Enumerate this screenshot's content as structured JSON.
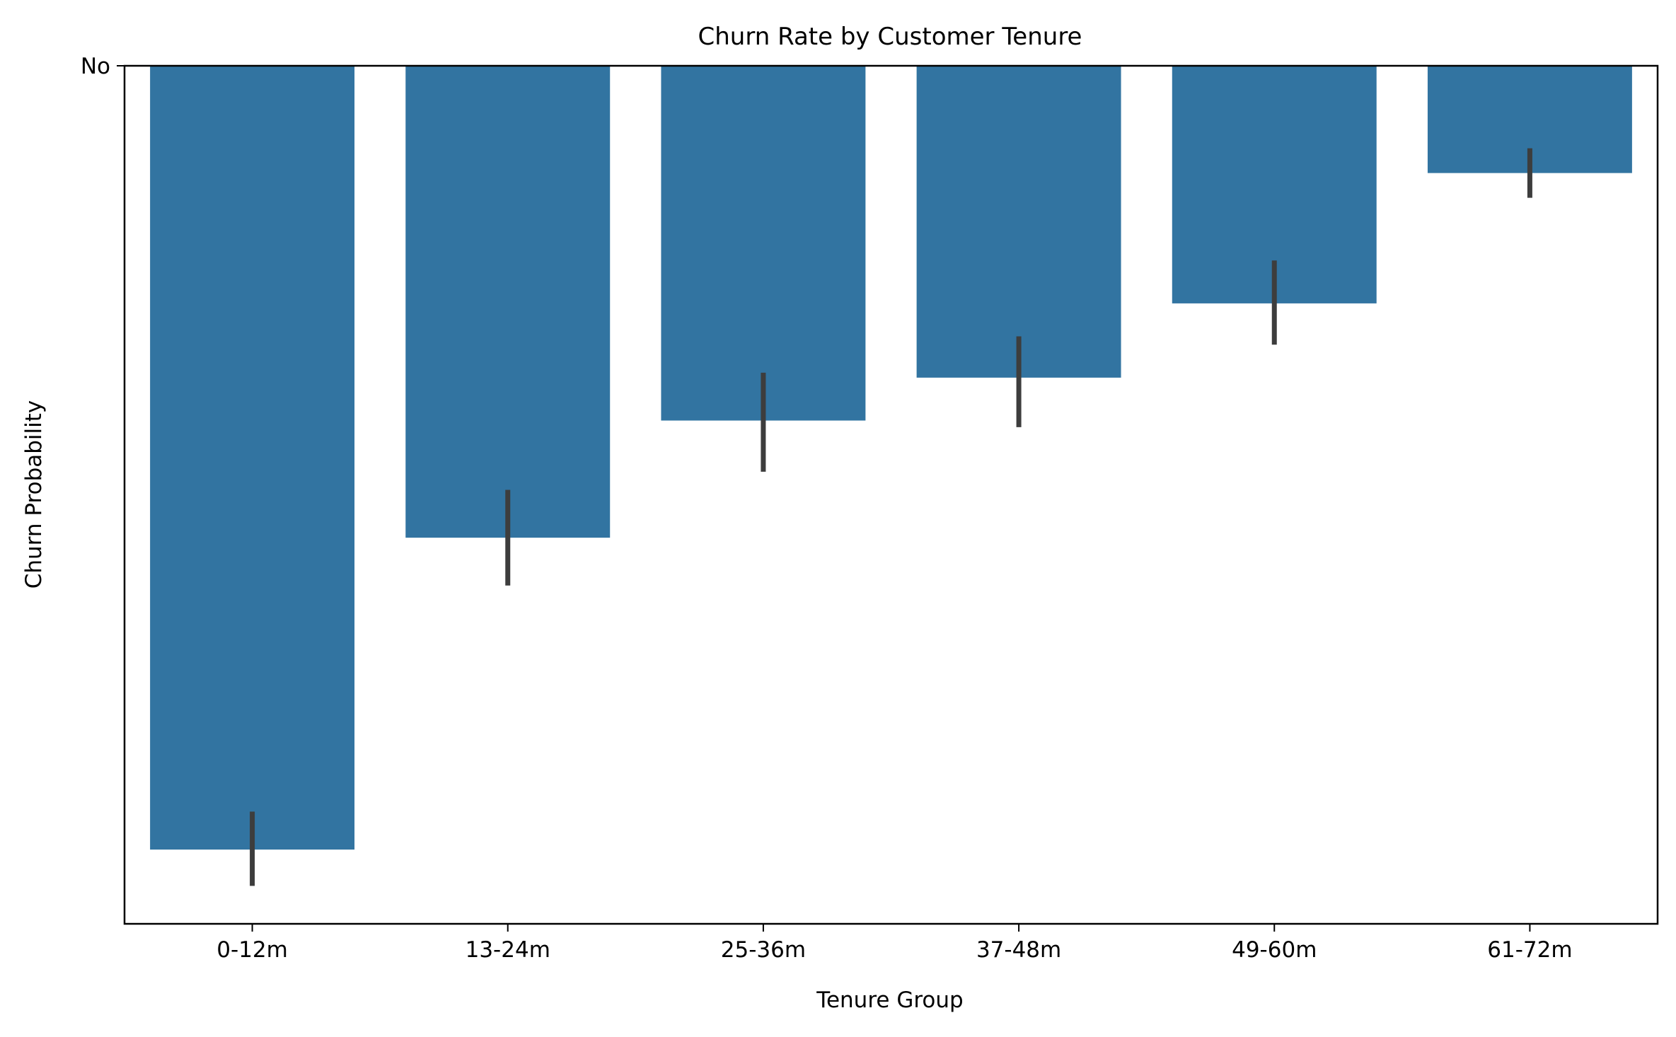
{
  "chart_data": {
    "type": "bar",
    "title": "Churn Rate by Customer Tenure",
    "xlabel": "Tenure Group",
    "ylabel": "Churn Probability",
    "categories": [
      "0-12m",
      "13-24m",
      "25-36m",
      "37-48m",
      "49-60m",
      "61-72m"
    ],
    "values": [
      0.475,
      0.286,
      0.215,
      0.189,
      0.144,
      0.065
    ],
    "error_low": [
      0.452,
      0.257,
      0.186,
      0.164,
      0.118,
      0.05
    ],
    "error_high": [
      0.497,
      0.315,
      0.246,
      0.219,
      0.169,
      0.08
    ],
    "ylim": [
      0.52,
      0
    ],
    "y_ticks": [
      {
        "value": 0,
        "label": "No"
      }
    ],
    "grid": false,
    "bar_color": "#3274a1",
    "error_color": "#3d3d3d"
  }
}
